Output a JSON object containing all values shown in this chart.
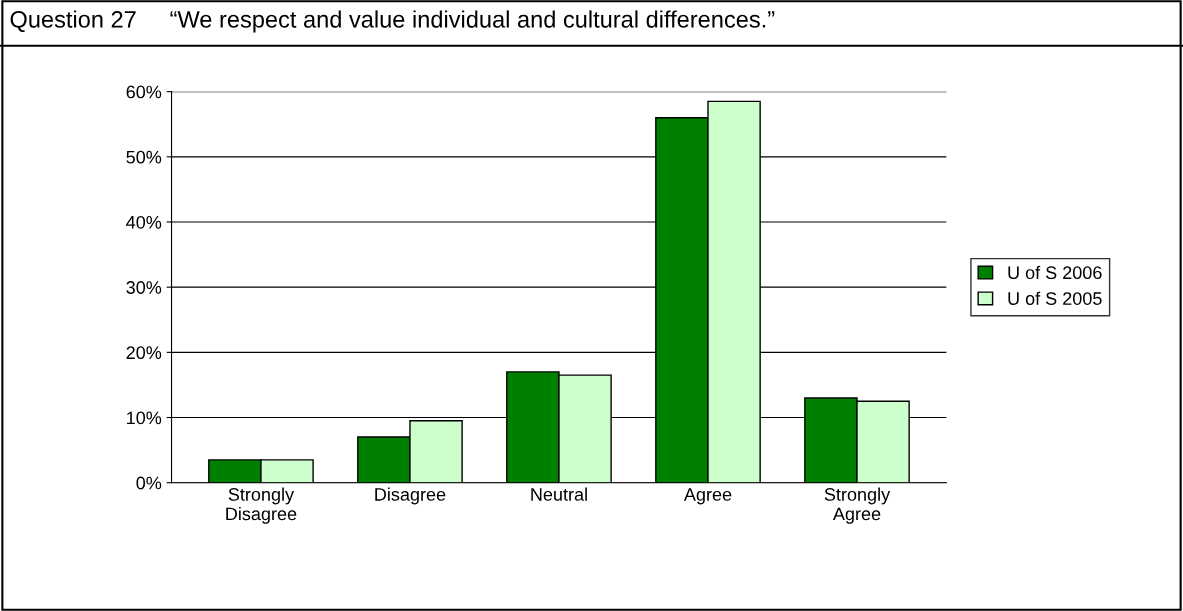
{
  "chart_data": {
    "type": "bar",
    "title": "Question 27     “We respect and value individual and cultural differences.”",
    "categories": [
      "Strongly\nDisagree",
      "Disagree",
      "Neutral",
      "Agree",
      "Strongly\nAgree"
    ],
    "series": [
      {
        "name": "U of S 2006",
        "color": "#008000",
        "values": [
          3.5,
          7,
          17,
          56,
          13
        ]
      },
      {
        "name": "U of S 2005",
        "color": "#ccffcc",
        "values": [
          3.5,
          9.5,
          16.5,
          58.5,
          12.5
        ]
      }
    ],
    "ylim": [
      0,
      60
    ],
    "yticks": [
      {
        "value": 0,
        "label": "0%"
      },
      {
        "value": 10,
        "label": "10%"
      },
      {
        "value": 20,
        "label": "20%"
      },
      {
        "value": 30,
        "label": "30%"
      },
      {
        "value": 40,
        "label": "40%"
      },
      {
        "value": 50,
        "label": "50%"
      },
      {
        "value": 60,
        "label": "60%"
      }
    ],
    "grid": "y",
    "legend": "right"
  }
}
